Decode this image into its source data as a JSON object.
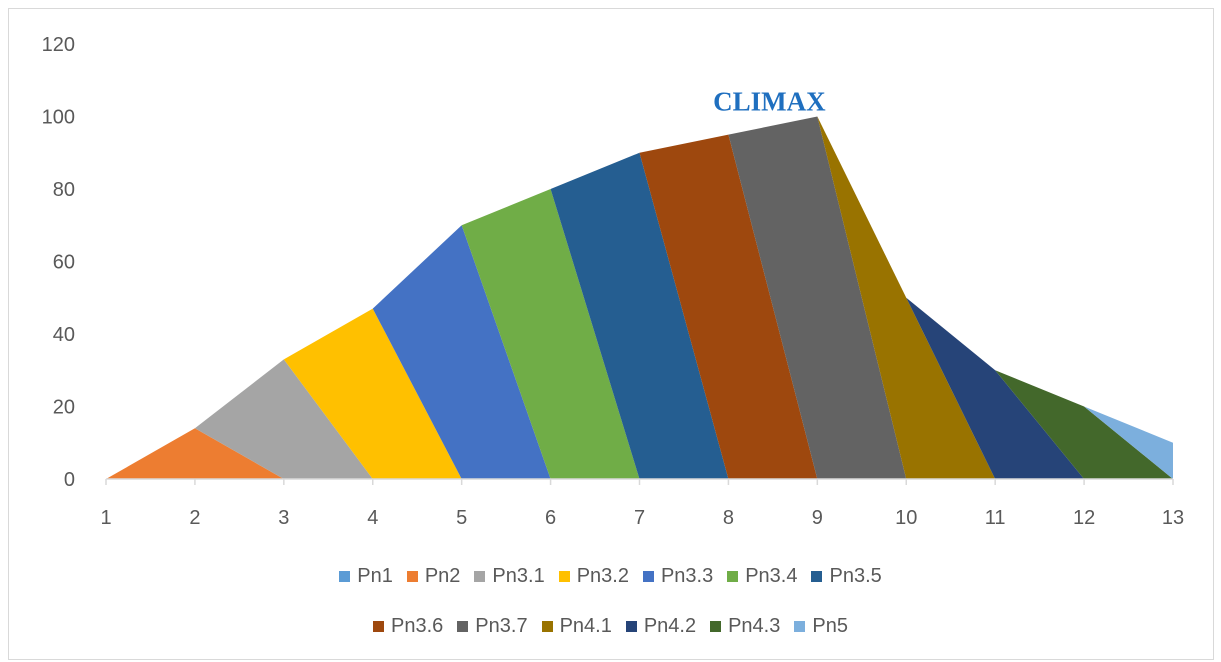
{
  "chart_data": {
    "type": "area",
    "x": [
      1,
      2,
      3,
      4,
      5,
      6,
      7,
      8,
      9,
      10,
      11,
      12,
      13
    ],
    "ylim": [
      0,
      120
    ],
    "yticks": [
      0,
      20,
      40,
      60,
      80,
      100,
      120
    ],
    "grid": false,
    "legend_position": "bottom",
    "annotation": {
      "text": "CLIMAX",
      "x": 9,
      "y": 100
    },
    "series": [
      {
        "name": "Pn1",
        "color": "#5b9bd5",
        "points": [
          [
            1,
            0
          ],
          [
            1,
            0
          ]
        ]
      },
      {
        "name": "Pn2",
        "color": "#ed7d31",
        "points": [
          [
            1,
            0
          ],
          [
            2,
            14
          ],
          [
            3,
            0
          ]
        ]
      },
      {
        "name": "Pn3.1",
        "color": "#a5a5a5",
        "points": [
          [
            2,
            14
          ],
          [
            3,
            33
          ],
          [
            4,
            0
          ],
          [
            3,
            0
          ]
        ]
      },
      {
        "name": "Pn3.2",
        "color": "#ffc000",
        "points": [
          [
            3,
            33
          ],
          [
            4,
            47
          ],
          [
            5,
            0
          ],
          [
            4,
            0
          ]
        ]
      },
      {
        "name": "Pn3.3",
        "color": "#4472c4",
        "points": [
          [
            4,
            47
          ],
          [
            5,
            70
          ],
          [
            6,
            0
          ],
          [
            5,
            0
          ]
        ]
      },
      {
        "name": "Pn3.4",
        "color": "#70ad47",
        "points": [
          [
            5,
            70
          ],
          [
            6,
            80
          ],
          [
            7,
            0
          ],
          [
            6,
            0
          ]
        ]
      },
      {
        "name": "Pn3.5",
        "color": "#255e91",
        "points": [
          [
            6,
            80
          ],
          [
            7,
            90
          ],
          [
            8,
            0
          ],
          [
            7,
            0
          ]
        ]
      },
      {
        "name": "Pn3.6",
        "color": "#9e480e",
        "points": [
          [
            7,
            90
          ],
          [
            8,
            95
          ],
          [
            9,
            0
          ],
          [
            8,
            0
          ]
        ]
      },
      {
        "name": "Pn3.7",
        "color": "#636363",
        "points": [
          [
            8,
            95
          ],
          [
            9,
            100
          ],
          [
            10,
            0
          ],
          [
            9,
            0
          ]
        ]
      },
      {
        "name": "Pn4.1",
        "color": "#997300",
        "points": [
          [
            9,
            100
          ],
          [
            10,
            50
          ],
          [
            11,
            0
          ],
          [
            10,
            0
          ]
        ]
      },
      {
        "name": "Pn4.2",
        "color": "#264478",
        "points": [
          [
            10,
            50
          ],
          [
            11,
            30
          ],
          [
            12,
            0
          ],
          [
            11,
            0
          ]
        ]
      },
      {
        "name": "Pn4.3",
        "color": "#43682b",
        "points": [
          [
            11,
            30
          ],
          [
            12,
            20
          ],
          [
            13,
            0
          ],
          [
            12,
            0
          ]
        ]
      },
      {
        "name": "Pn5",
        "color": "#7cafdd",
        "points": [
          [
            12,
            20
          ],
          [
            13,
            10
          ],
          [
            13,
            0
          ]
        ]
      }
    ]
  }
}
